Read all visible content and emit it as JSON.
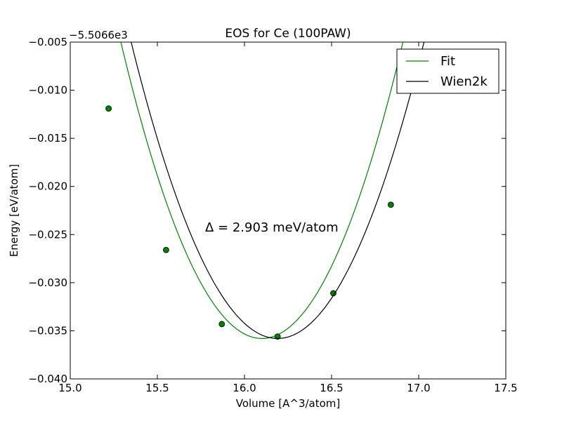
{
  "chart_data": {
    "type": "line",
    "title": "EOS for Ce (100PAW)",
    "xlabel": "Volume [A^3/atom]",
    "ylabel": "Energy [eV/atom]",
    "y_offset_label": "−5.5066e3",
    "xlim": [
      15.0,
      17.5
    ],
    "ylim": [
      -0.04,
      -0.005
    ],
    "x_ticks": [
      15.0,
      15.5,
      16.0,
      16.5,
      17.0,
      17.5
    ],
    "x_tick_labels": [
      "15.0",
      "15.5",
      "16.0",
      "16.5",
      "17.0",
      "17.5"
    ],
    "y_ticks": [
      -0.04,
      -0.035,
      -0.03,
      -0.025,
      -0.02,
      -0.015,
      -0.01,
      -0.005
    ],
    "y_tick_labels": [
      "−0.040",
      "−0.035",
      "−0.030",
      "−0.025",
      "−0.020",
      "−0.015",
      "−0.010",
      "−0.005"
    ],
    "annotation": "Δ = 2.903 meV/atom",
    "legend_position": "top-right",
    "grid": false,
    "series": [
      {
        "name": "Fit",
        "color": "#008000",
        "curve": {
          "kind": "parabola",
          "x_min": 16.1,
          "y_min": -0.0358,
          "curvature": 0.047,
          "x_range": [
            15.22,
            17.16
          ]
        },
        "points": [
          {
            "x": 15.22,
            "y": -0.0119
          },
          {
            "x": 15.55,
            "y": -0.0266
          },
          {
            "x": 15.87,
            "y": -0.0343
          },
          {
            "x": 16.19,
            "y": -0.0356
          },
          {
            "x": 16.51,
            "y": -0.0311
          },
          {
            "x": 16.84,
            "y": -0.0219
          }
        ]
      },
      {
        "name": "Wien2k",
        "color": "#000000",
        "curve": {
          "kind": "parabola",
          "x_min": 16.19,
          "y_min": -0.0358,
          "curvature": 0.0436,
          "x_range": [
            15.22,
            17.16
          ]
        }
      }
    ]
  }
}
